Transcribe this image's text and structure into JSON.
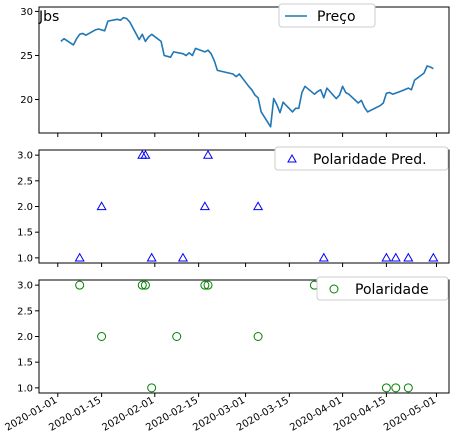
{
  "chart_data": [
    {
      "type": "line",
      "title": "Jbs",
      "legend": {
        "placement": "top-right",
        "entries": [
          "Preço"
        ]
      },
      "series": [
        {
          "name": "Preço",
          "color": "#1f77b4",
          "x": [
            "2020-01-02",
            "2020-01-03",
            "2020-01-06",
            "2020-01-07",
            "2020-01-08",
            "2020-01-09",
            "2020-01-10",
            "2020-01-13",
            "2020-01-14",
            "2020-01-15",
            "2020-01-16",
            "2020-01-17",
            "2020-01-20",
            "2020-01-21",
            "2020-01-22",
            "2020-01-23",
            "2020-01-24",
            "2020-01-27",
            "2020-01-28",
            "2020-01-29",
            "2020-01-30",
            "2020-01-31",
            "2020-02-03",
            "2020-02-04",
            "2020-02-05",
            "2020-02-06",
            "2020-02-07",
            "2020-02-10",
            "2020-02-11",
            "2020-02-12",
            "2020-02-13",
            "2020-02-14",
            "2020-02-17",
            "2020-02-18",
            "2020-02-19",
            "2020-02-20",
            "2020-02-21",
            "2020-02-26",
            "2020-02-27",
            "2020-02-28",
            "2020-03-02",
            "2020-03-03",
            "2020-03-04",
            "2020-03-05",
            "2020-03-06",
            "2020-03-09",
            "2020-03-10",
            "2020-03-11",
            "2020-03-12",
            "2020-03-13",
            "2020-03-16",
            "2020-03-17",
            "2020-03-18",
            "2020-03-19",
            "2020-03-20",
            "2020-03-23",
            "2020-03-24",
            "2020-03-25",
            "2020-03-26",
            "2020-03-27",
            "2020-03-30",
            "2020-03-31",
            "2020-04-01",
            "2020-04-02",
            "2020-04-03",
            "2020-04-06",
            "2020-04-07",
            "2020-04-08",
            "2020-04-09",
            "2020-04-13",
            "2020-04-14",
            "2020-04-15",
            "2020-04-16",
            "2020-04-17",
            "2020-04-20",
            "2020-04-22",
            "2020-04-23",
            "2020-04-24",
            "2020-04-27",
            "2020-04-28",
            "2020-04-29",
            "2020-04-30"
          ],
          "values": [
            26.6,
            26.9,
            26.2,
            26.9,
            27.4,
            27.5,
            27.3,
            27.9,
            28.0,
            27.9,
            27.8,
            28.9,
            29.1,
            29.0,
            29.3,
            29.2,
            28.8,
            26.8,
            27.4,
            26.6,
            27.1,
            27.4,
            26.6,
            25.0,
            24.9,
            24.8,
            25.4,
            25.2,
            25.0,
            25.3,
            25.0,
            25.8,
            25.4,
            25.6,
            25.2,
            24.4,
            23.3,
            22.9,
            22.6,
            22.9,
            21.5,
            21.1,
            20.5,
            20.2,
            18.6,
            16.9,
            20.1,
            19.4,
            18.5,
            19.7,
            18.6,
            19.0,
            19.0,
            20.8,
            21.5,
            20.6,
            20.9,
            21.1,
            20.2,
            21.3,
            20.1,
            20.5,
            21.5,
            20.8,
            20.6,
            19.6,
            19.9,
            19.1,
            18.6,
            19.3,
            19.6,
            20.7,
            20.8,
            20.6,
            21.0,
            21.3,
            21.1,
            22.2,
            23.0,
            23.8,
            23.7,
            23.5
          ]
        }
      ],
      "yticks": [
        20,
        25,
        30
      ],
      "ylim": [
        16.2,
        30.5
      ],
      "grid": false
    },
    {
      "type": "scatter",
      "legend": {
        "placement": "top-right",
        "entries": [
          "Polaridade Pred."
        ]
      },
      "series": [
        {
          "name": "Polaridade Pred.",
          "marker": "triangle-open",
          "color": "#0000ff",
          "x": [
            "2020-01-08",
            "2020-01-15",
            "2020-01-28",
            "2020-01-29",
            "2020-01-31",
            "2020-02-10",
            "2020-02-17",
            "2020-02-18",
            "2020-03-05",
            "2020-03-23",
            "2020-03-25",
            "2020-03-26",
            "2020-04-15",
            "2020-04-18",
            "2020-04-22",
            "2020-04-30"
          ],
          "values": [
            1.0,
            2.0,
            3.0,
            3.0,
            1.0,
            1.0,
            2.0,
            3.0,
            2.0,
            3.0,
            3.0,
            1.0,
            1.0,
            1.0,
            1.0,
            1.0
          ]
        }
      ],
      "yticks": [
        1.0,
        1.5,
        2.0,
        2.5,
        3.0
      ],
      "ylim": [
        0.9,
        3.1
      ],
      "grid": false
    },
    {
      "type": "scatter",
      "legend": {
        "placement": "top-right",
        "entries": [
          "Polaridade"
        ]
      },
      "series": [
        {
          "name": "Polaridade",
          "marker": "circle-open",
          "color": "#008000",
          "x": [
            "2020-01-08",
            "2020-01-15",
            "2020-01-28",
            "2020-01-29",
            "2020-01-31",
            "2020-02-08",
            "2020-02-17",
            "2020-02-18",
            "2020-03-05",
            "2020-03-23",
            "2020-03-26",
            "2020-03-27",
            "2020-04-15",
            "2020-04-18",
            "2020-04-22",
            "2020-04-30"
          ],
          "values": [
            3.0,
            2.0,
            3.0,
            3.0,
            1.0,
            2.0,
            3.0,
            3.0,
            2.0,
            3.0,
            3.0,
            3.0,
            1.0,
            1.0,
            1.0,
            3.0
          ]
        }
      ],
      "yticks": [
        1.0,
        1.5,
        2.0,
        2.5,
        3.0
      ],
      "ylim": [
        0.9,
        3.1
      ],
      "grid": false
    }
  ],
  "shared_x": {
    "ticks": [
      "2020-01-01",
      "2020-01-15",
      "2020-02-01",
      "2020-02-15",
      "2020-03-01",
      "2020-03-15",
      "2020-04-01",
      "2020-04-15",
      "2020-05-01"
    ],
    "xlim": [
      "2019-12-26",
      "2020-05-05"
    ]
  }
}
